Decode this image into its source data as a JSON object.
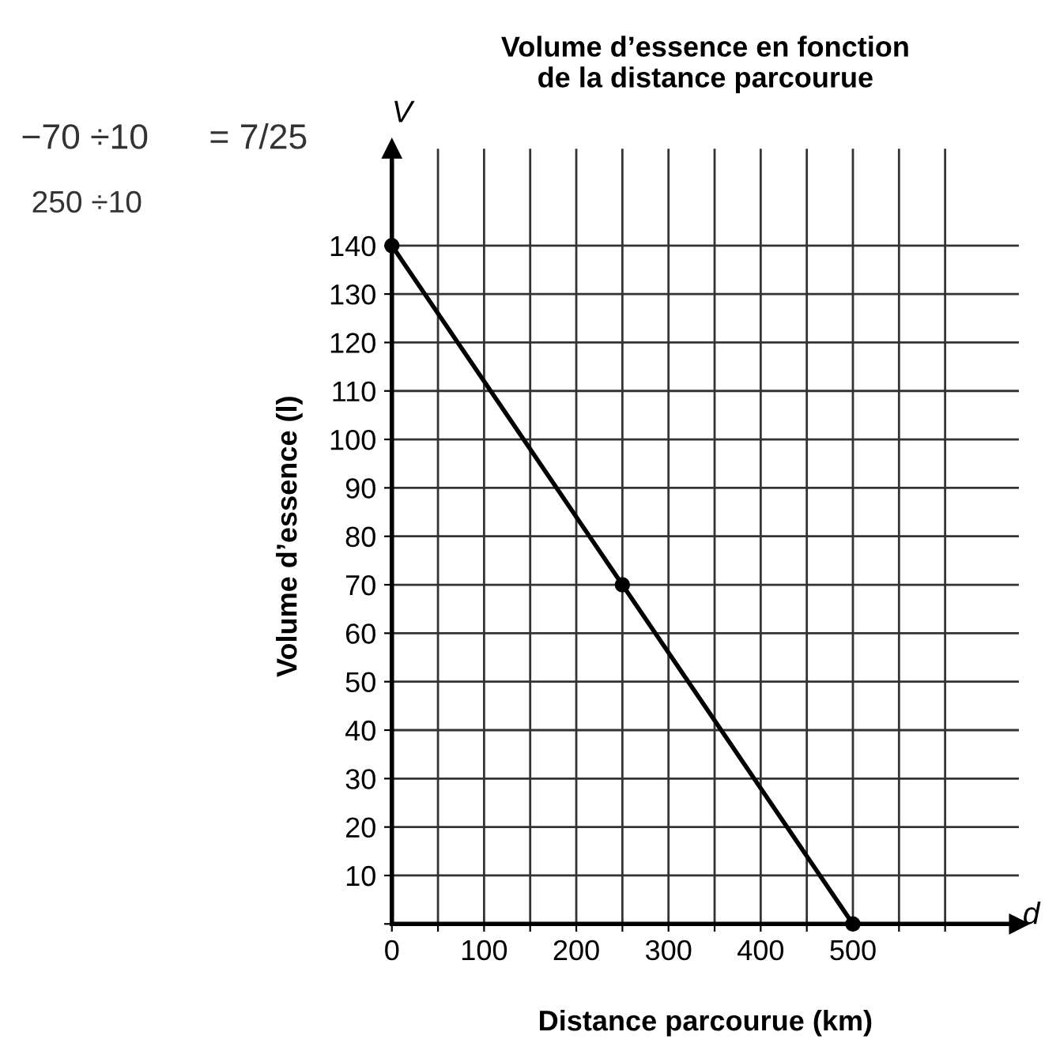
{
  "chart_data": {
    "type": "line",
    "title": "Volume d’essence en fonction\nde la distance parcourue",
    "xlabel": "Distance parcourue (km)",
    "ylabel": "Volume d’essence (l)",
    "x": [
      0,
      250,
      500
    ],
    "values": [
      140,
      70,
      0
    ],
    "color": "#000000",
    "marker": "circle",
    "line_style": "solid",
    "xlim": [
      0,
      680
    ],
    "ylim": [
      0,
      160
    ],
    "xticks": [
      0,
      {
        "value": 50,
        "label": null
      },
      100,
      {
        "value": 150,
        "label": null
      },
      200,
      {
        "value": 250,
        "label": null
      },
      300,
      {
        "value": 350,
        "label": null
      },
      400,
      {
        "value": 450,
        "label": null
      },
      500,
      {
        "value": 550,
        "label": null
      },
      {
        "value": 600,
        "label": null
      }
    ],
    "yticks": [
      {
        "value": 0,
        "label": null
      },
      10,
      20,
      30,
      40,
      50,
      60,
      70,
      80,
      90,
      100,
      110,
      120,
      130,
      140
    ],
    "grid": true,
    "annotations": [
      "V",
      "d",
      "−70 ÷10",
      "250 ÷10",
      "= 7/25"
    ]
  }
}
